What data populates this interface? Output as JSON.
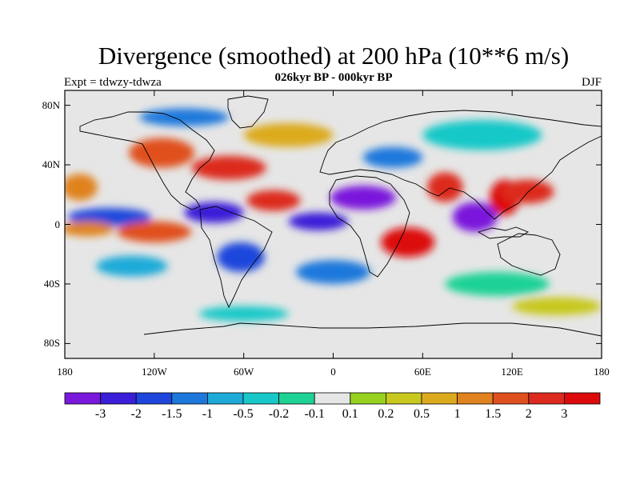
{
  "title": "Divergence (smoothed) at 200 hPa (10**6 m/s)",
  "subtitle": "026kyr BP - 000kyr BP",
  "left_label": "Expt = tdwzy-tdwza",
  "right_label": "DJF",
  "axes": {
    "y_ticks": [
      {
        "label": "80N",
        "lat": 80
      },
      {
        "label": "40N",
        "lat": 40
      },
      {
        "label": "0",
        "lat": 0
      },
      {
        "label": "40S",
        "lat": -40
      },
      {
        "label": "80S",
        "lat": -80
      }
    ],
    "x_ticks": [
      {
        "label": "180",
        "lon": -180
      },
      {
        "label": "120W",
        "lon": -120
      },
      {
        "label": "60W",
        "lon": -60
      },
      {
        "label": "0",
        "lon": 0
      },
      {
        "label": "60E",
        "lon": 60
      },
      {
        "label": "120E",
        "lon": 120
      },
      {
        "label": "180",
        "lon": 180
      }
    ],
    "lon_range": [
      -180,
      180
    ],
    "lat_range": [
      -90,
      90
    ]
  },
  "colorbar": {
    "colors": [
      "#7a18dc",
      "#3b1ed8",
      "#1e46dc",
      "#1e78dc",
      "#1eaad8",
      "#18c8c8",
      "#1ed296",
      "#e6e6e6",
      "#96d21e",
      "#c8c81e",
      "#dcaa1e",
      "#e0821e",
      "#e0501e",
      "#dc2a1e",
      "#dc0a0a"
    ],
    "labels": [
      "-3",
      "-2",
      "-1.5",
      "-1",
      "-0.5",
      "-0.2",
      "-0.1",
      "0.1",
      "0.2",
      "0.5",
      "1",
      "1.5",
      "2",
      "3"
    ]
  },
  "field": {
    "background_class": 7,
    "blobs": [
      {
        "lon": -150,
        "lat": 5,
        "rx": 28,
        "ry": 6,
        "class": 2
      },
      {
        "lon": -165,
        "lat": -3,
        "rx": 18,
        "ry": 5,
        "class": 11
      },
      {
        "lon": -120,
        "lat": -5,
        "rx": 25,
        "ry": 7,
        "class": 12
      },
      {
        "lon": -80,
        "lat": 8,
        "rx": 20,
        "ry": 7,
        "class": 1
      },
      {
        "lon": -62,
        "lat": -22,
        "rx": 16,
        "ry": 10,
        "class": 2
      },
      {
        "lon": -40,
        "lat": 16,
        "rx": 18,
        "ry": 7,
        "class": 13
      },
      {
        "lon": -10,
        "lat": 2,
        "rx": 20,
        "ry": 6,
        "class": 1
      },
      {
        "lon": 20,
        "lat": 18,
        "rx": 22,
        "ry": 8,
        "class": 0
      },
      {
        "lon": 50,
        "lat": -12,
        "rx": 18,
        "ry": 10,
        "class": 14
      },
      {
        "lon": 75,
        "lat": 25,
        "rx": 12,
        "ry": 10,
        "class": 13
      },
      {
        "lon": 95,
        "lat": 5,
        "rx": 15,
        "ry": 10,
        "class": 0
      },
      {
        "lon": 115,
        "lat": 18,
        "rx": 10,
        "ry": 12,
        "class": 14
      },
      {
        "lon": 130,
        "lat": 22,
        "rx": 18,
        "ry": 8,
        "class": 13
      },
      {
        "lon": -115,
        "lat": 48,
        "rx": 22,
        "ry": 10,
        "class": 12
      },
      {
        "lon": -70,
        "lat": 38,
        "rx": 25,
        "ry": 8,
        "class": 13
      },
      {
        "lon": -170,
        "lat": 25,
        "rx": 12,
        "ry": 9,
        "class": 11
      },
      {
        "lon": 0,
        "lat": -32,
        "rx": 25,
        "ry": 8,
        "class": 3
      },
      {
        "lon": -135,
        "lat": -28,
        "rx": 24,
        "ry": 7,
        "class": 4
      },
      {
        "lon": 110,
        "lat": -40,
        "rx": 35,
        "ry": 8,
        "class": 6
      },
      {
        "lon": -30,
        "lat": 60,
        "rx": 30,
        "ry": 8,
        "class": 10
      },
      {
        "lon": -100,
        "lat": 72,
        "rx": 30,
        "ry": 6,
        "class": 3
      },
      {
        "lon": 100,
        "lat": 60,
        "rx": 40,
        "ry": 10,
        "class": 5
      },
      {
        "lon": 150,
        "lat": -55,
        "rx": 30,
        "ry": 6,
        "class": 9
      },
      {
        "lon": -60,
        "lat": -60,
        "rx": 30,
        "ry": 5,
        "class": 5
      },
      {
        "lon": 40,
        "lat": 45,
        "rx": 20,
        "ry": 7,
        "class": 3
      }
    ]
  }
}
